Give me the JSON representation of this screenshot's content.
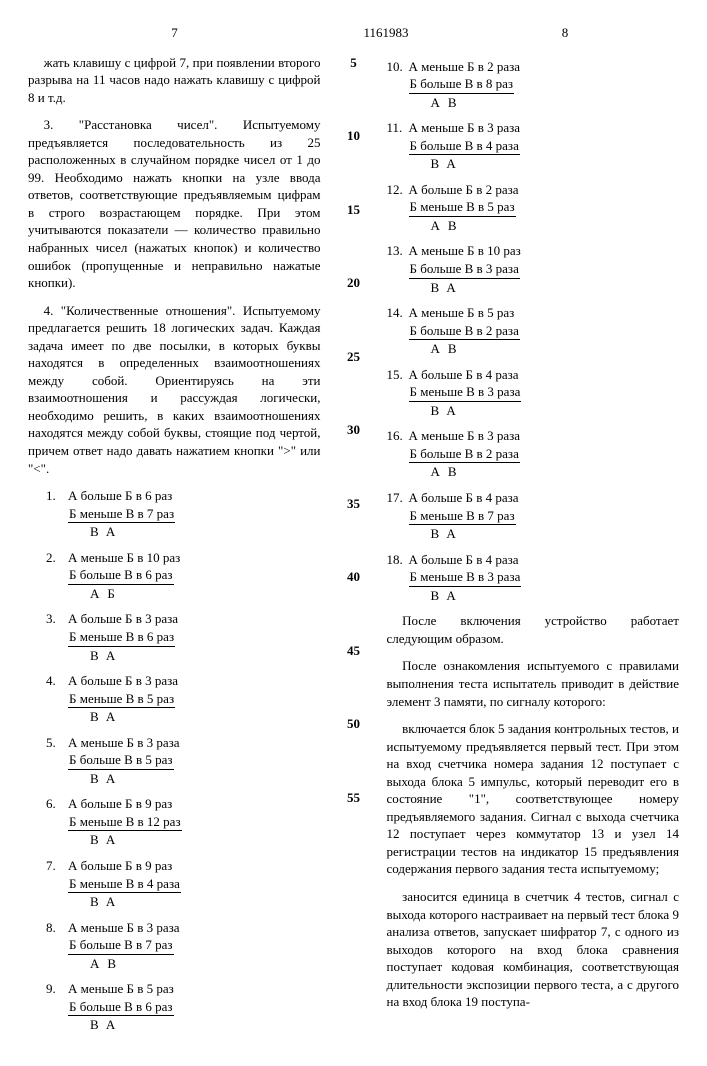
{
  "header": {
    "pageLeft": "7",
    "docNum": "1161983",
    "pageRight": "8"
  },
  "leftCol": {
    "p1": "жать клавишу с цифрой 7, при появлении второго разрыва на 11 часов надо нажать клавишу с цифрой 8 и т.д.",
    "p2": "3. \"Расстановка чисел\". Испытуемому предъявляется последовательность из 25 расположенных в случайном порядке чисел от 1 до 99. Необходимо нажать кнопки на узле ввода ответов, соответствующие предъявляемым цифрам в строго возрастающем порядке. При этом учитываются показатели — количество правильно набранных чисел (нажатых кнопок) и количество ошибок (пропущенные и неправильно нажатые кнопки).",
    "p3": "4. \"Количественные отношения\". Испытуемому предлагается решить 18 логических задач. Каждая задача имеет по две посылки, в которых буквы находятся в определенных взаимоотношениях между собой. Ориентируясь на эти взаимоотношения и рассуждая логически, необходимо решить, в каких взаимоотношениях находятся между собой буквы, стоящие под чертой, причем ответ надо давать нажатием кнопки \">\" или \"<\"."
  },
  "problems": [
    {
      "n": "1.",
      "l1": "А больше Б в 6 раз",
      "l2": "Б меньше В в 7 раз",
      "b1": "В",
      "b2": "А"
    },
    {
      "n": "2.",
      "l1": "А меньше Б в 10 раз",
      "l2": "Б больше В в 6 раз",
      "b1": "А",
      "b2": "Б"
    },
    {
      "n": "3.",
      "l1": "А больше Б в 3 раза",
      "l2": "Б меньше В в 6 раз",
      "b1": "В",
      "b2": "А"
    },
    {
      "n": "4.",
      "l1": "А больше Б в 3 раза",
      "l2": "Б меньше В в 5 раз",
      "b1": "В",
      "b2": "А"
    },
    {
      "n": "5.",
      "l1": "А меньше Б в 3 раза",
      "l2": "Б больше В в 5 раз",
      "b1": "В",
      "b2": "А"
    },
    {
      "n": "6.",
      "l1": "А больше Б в 9 раз",
      "l2": "Б меньше В в 12 раз",
      "b1": "В",
      "b2": "А"
    },
    {
      "n": "7.",
      "l1": "А больше Б в 9 раз",
      "l2": "Б меньше В в 4 раза",
      "b1": "В",
      "b2": "А"
    },
    {
      "n": "8.",
      "l1": "А меньше Б в 3 раза",
      "l2": "Б больше В в 7 раз",
      "b1": "А",
      "b2": "В"
    },
    {
      "n": "9.",
      "l1": "А меньше Б в 5 раз",
      "l2": "Б больше В в 6 раз",
      "b1": "В",
      "b2": "А"
    },
    {
      "n": "10.",
      "l1": "А меньше Б в 2 раза",
      "l2": "Б больше В в 8 раз",
      "b1": "А",
      "b2": "В"
    },
    {
      "n": "11.",
      "l1": "А меньше Б в 3 раза",
      "l2": "Б больше В в 4 раза",
      "b1": "В",
      "b2": "А"
    },
    {
      "n": "12.",
      "l1": "А больше Б в 2 раза",
      "l2": "Б меньше В в 5 раз",
      "b1": "А",
      "b2": "В"
    },
    {
      "n": "13.",
      "l1": "А меньше Б в 10 раз",
      "l2": "Б больше В в 3 раза",
      "b1": "В",
      "b2": "А"
    },
    {
      "n": "14.",
      "l1": "А меньше Б в 5 раз",
      "l2": "Б больше В в 2 раза",
      "b1": "А",
      "b2": "В"
    },
    {
      "n": "15.",
      "l1": "А больше Б в 4 раза",
      "l2": "Б меньше В в 3 раза",
      "b1": "В",
      "b2": "А"
    },
    {
      "n": "16.",
      "l1": "А меньше Б в 3 раза",
      "l2": "Б больше В в 2 раза",
      "b1": "А",
      "b2": "В"
    },
    {
      "n": "17.",
      "l1": "А больше Б в 4 раза",
      "l2": "Б меньше В в 7 раз",
      "b1": "В",
      "b2": "А"
    },
    {
      "n": "18.",
      "l1": "А больше Б в 4 раза",
      "l2": "Б меньше В в 3 раза",
      "b1": "В",
      "b2": "А"
    }
  ],
  "rightCol": {
    "p1": "После включения устройство работает следующим образом.",
    "p2": "После ознакомления испытуемого с правилами выполнения теста испытатель приводит в действие элемент 3 памяти, по сигналу которого:",
    "p3": "включается блок 5 задания контрольных тестов, и испытуемому предъявляется первый тест. При этом на вход счетчика номера задания 12 поступает с выхода блока 5 импульс, который переводит его в состояние \"1\", соответствующее номеру предъявляемого задания. Сигнал с выхода счетчика 12 поступает через коммутатор 13 и узел 14 регистрации тестов на индикатор 15 предъявления содержания первого задания теста испытуемому;",
    "p4": "заносится единица в счетчик 4 тестов, сигнал с выхода которого настраивает на первый тест блока 9 анализа ответов, запускает шифратор 7, с одного из выходов которого на вход блока сравнения поступает кодовая комбинация, соответствующая длительности экспозиции первого теста, а с другого на вход блока 19 поступа-"
  },
  "lineNums": [
    "5",
    "10",
    "15",
    "20",
    "25",
    "30",
    "35",
    "40",
    "45",
    "50",
    "55"
  ]
}
